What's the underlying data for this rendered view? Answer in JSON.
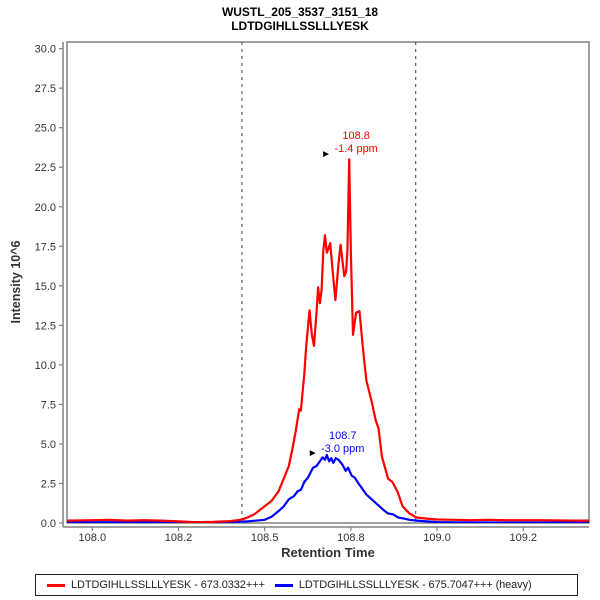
{
  "title": {
    "line1": "WUSTL_205_3537_3151_18",
    "line2": "LDTDGIHLLSSLLLYESK"
  },
  "icons": {
    "peak_pointer": "►"
  },
  "colors": {
    "light_series": "#ff0000",
    "heavy_series": "#0000ff",
    "border": "#808080",
    "tick_text": "#333333",
    "boundary": "#404040"
  },
  "chart_data": {
    "type": "line",
    "title": "WUSTL_205_3537_3151_18",
    "subtitle": "LDTDGIHLLSSLLLYESK",
    "xlabel": "Retention Time",
    "ylabel": "Intensity 10^6",
    "xlim": [
      107.9266,
      109.4406
    ],
    "ylim": [
      0,
      30.42
    ],
    "grid": false,
    "legend_position": "bottom",
    "x_ticks": [
      {
        "v": 108.0,
        "label": "108.0"
      },
      {
        "v": 108.25,
        "label": "108.2"
      },
      {
        "v": 108.5,
        "label": "108.5"
      },
      {
        "v": 108.75,
        "label": "108.8"
      },
      {
        "v": 109.0,
        "label": "109.0"
      },
      {
        "v": 109.25,
        "label": "109.2"
      }
    ],
    "y_ticks": [
      {
        "v": 0,
        "label": "0.0"
      },
      {
        "v": 2.5,
        "label": "2.5"
      },
      {
        "v": 5,
        "label": "5.0"
      },
      {
        "v": 7.5,
        "label": "7.5"
      },
      {
        "v": 10,
        "label": "10.0"
      },
      {
        "v": 12.5,
        "label": "12.5"
      },
      {
        "v": 15,
        "label": "15.0"
      },
      {
        "v": 17.5,
        "label": "17.5"
      },
      {
        "v": 20,
        "label": "20.0"
      },
      {
        "v": 22.5,
        "label": "22.5"
      },
      {
        "v": 25,
        "label": "25.0"
      },
      {
        "v": 27.5,
        "label": "27.5"
      },
      {
        "v": 30,
        "label": "30.0"
      }
    ],
    "integration_boundaries": [
      108.434,
      108.938
    ],
    "peak_annotations": [
      {
        "rt_label": "108.8",
        "ppm_label": "-1.4 ppm",
        "x": 108.745,
        "y": 23.0,
        "color": "#ff0000",
        "series": "light"
      },
      {
        "rt_label": "108.7",
        "ppm_label": "-3.0 ppm",
        "x": 108.68,
        "y": 4.3,
        "color": "#0000ff",
        "series": "heavy"
      }
    ],
    "series": [
      {
        "name": "LDTDGIHLLSSLLLYESK - 673.0332+++",
        "color": "#ff0000",
        "points": [
          [
            107.93,
            0.15
          ],
          [
            108.0,
            0.18
          ],
          [
            108.05,
            0.2
          ],
          [
            108.1,
            0.15
          ],
          [
            108.15,
            0.18
          ],
          [
            108.2,
            0.15
          ],
          [
            108.25,
            0.1
          ],
          [
            108.3,
            0.05
          ],
          [
            108.35,
            0.07
          ],
          [
            108.4,
            0.12
          ],
          [
            108.43,
            0.2
          ],
          [
            108.45,
            0.35
          ],
          [
            108.47,
            0.55
          ],
          [
            108.49,
            0.9
          ],
          [
            108.52,
            1.4
          ],
          [
            108.54,
            2.0
          ],
          [
            108.555,
            2.8
          ],
          [
            108.57,
            3.6
          ],
          [
            108.58,
            4.65
          ],
          [
            108.59,
            5.8
          ],
          [
            108.6,
            7.2
          ],
          [
            108.605,
            7.1
          ],
          [
            108.61,
            8.3
          ],
          [
            108.615,
            9.4
          ],
          [
            108.62,
            11.1
          ],
          [
            108.63,
            13.45
          ],
          [
            108.637,
            11.9
          ],
          [
            108.643,
            11.2
          ],
          [
            108.65,
            13.2
          ],
          [
            108.655,
            14.9
          ],
          [
            108.66,
            13.9
          ],
          [
            108.665,
            14.75
          ],
          [
            108.67,
            17.2
          ],
          [
            108.675,
            18.2
          ],
          [
            108.68,
            17.1
          ],
          [
            108.684,
            17.3
          ],
          [
            108.69,
            17.7
          ],
          [
            108.698,
            15.7
          ],
          [
            108.705,
            14.1
          ],
          [
            108.714,
            16.4
          ],
          [
            108.72,
            17.6
          ],
          [
            108.726,
            16.5
          ],
          [
            108.731,
            15.6
          ],
          [
            108.736,
            15.9
          ],
          [
            108.74,
            17.2
          ],
          [
            108.745,
            23.0
          ],
          [
            108.75,
            17.0
          ],
          [
            108.756,
            11.9
          ],
          [
            108.765,
            13.3
          ],
          [
            108.775,
            13.4
          ],
          [
            108.785,
            11.0
          ],
          [
            108.795,
            9.0
          ],
          [
            108.81,
            7.7
          ],
          [
            108.822,
            6.5
          ],
          [
            108.83,
            6.0
          ],
          [
            108.84,
            4.2
          ],
          [
            108.858,
            2.8
          ],
          [
            108.87,
            2.6
          ],
          [
            108.885,
            2.0
          ],
          [
            108.9,
            1.05
          ],
          [
            108.92,
            0.6
          ],
          [
            108.94,
            0.35
          ],
          [
            108.97,
            0.28
          ],
          [
            109.0,
            0.22
          ],
          [
            109.05,
            0.2
          ],
          [
            109.1,
            0.18
          ],
          [
            109.15,
            0.2
          ],
          [
            109.2,
            0.18
          ],
          [
            109.3,
            0.18
          ],
          [
            109.4,
            0.15
          ],
          [
            109.44,
            0.15
          ]
        ]
      },
      {
        "name": "LDTDGIHLLSSLLLYESK - 675.7047+++ (heavy)",
        "color": "#0000ff",
        "points": [
          [
            107.93,
            0.05
          ],
          [
            108.1,
            0.05
          ],
          [
            108.2,
            0.04
          ],
          [
            108.3,
            0.05
          ],
          [
            108.4,
            0.06
          ],
          [
            108.45,
            0.1
          ],
          [
            108.5,
            0.2
          ],
          [
            108.52,
            0.4
          ],
          [
            108.54,
            0.75
          ],
          [
            108.555,
            1.05
          ],
          [
            108.57,
            1.5
          ],
          [
            108.585,
            1.7
          ],
          [
            108.595,
            2.0
          ],
          [
            108.605,
            2.1
          ],
          [
            108.615,
            2.6
          ],
          [
            108.625,
            2.85
          ],
          [
            108.64,
            3.5
          ],
          [
            108.65,
            3.6
          ],
          [
            108.66,
            3.9
          ],
          [
            108.668,
            4.15
          ],
          [
            108.675,
            4.0
          ],
          [
            108.68,
            4.3
          ],
          [
            108.687,
            3.9
          ],
          [
            108.693,
            4.1
          ],
          [
            108.699,
            3.8
          ],
          [
            108.706,
            4.1
          ],
          [
            108.714,
            4.0
          ],
          [
            108.725,
            3.7
          ],
          [
            108.735,
            3.3
          ],
          [
            108.742,
            3.5
          ],
          [
            108.752,
            3.0
          ],
          [
            108.762,
            2.85
          ],
          [
            108.772,
            2.5
          ],
          [
            108.782,
            2.2
          ],
          [
            108.795,
            1.8
          ],
          [
            108.81,
            1.5
          ],
          [
            108.828,
            1.15
          ],
          [
            108.843,
            0.85
          ],
          [
            108.858,
            0.6
          ],
          [
            108.872,
            0.55
          ],
          [
            108.887,
            0.35
          ],
          [
            108.9,
            0.3
          ],
          [
            108.92,
            0.2
          ],
          [
            108.94,
            0.15
          ],
          [
            108.97,
            0.1
          ],
          [
            109.0,
            0.06
          ],
          [
            109.05,
            0.04
          ],
          [
            109.2,
            0.03
          ],
          [
            109.44,
            0.03
          ]
        ]
      }
    ]
  }
}
